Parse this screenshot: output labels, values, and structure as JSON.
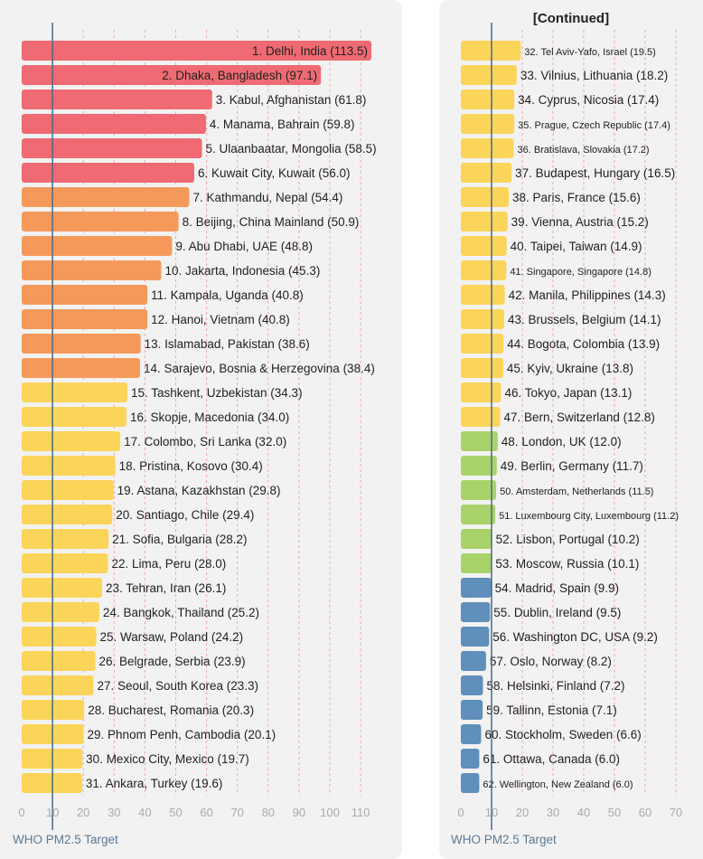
{
  "continued_label": "[Continued]",
  "target_label": "WHO PM2.5 Target",
  "target_value": 10,
  "colors": {
    "red": "#ef6a72",
    "orange": "#f5995a",
    "yellow": "#fbd45a",
    "green": "#a9d26a",
    "blue": "#5f8fba",
    "target_line": "#4a6a88",
    "grid": "#f0a8b0",
    "tick": "#aaaaaa",
    "text": "#222222"
  },
  "chart_data": [
    {
      "type": "bar",
      "orientation": "horizontal",
      "xlim": [
        0,
        115
      ],
      "xticks": [
        0,
        10,
        20,
        30,
        40,
        50,
        60,
        70,
        80,
        90,
        100,
        110
      ],
      "reference_line": 10,
      "categories": [
        "1. Delhi, India (113.5)",
        "2. Dhaka, Bangladesh (97.1)",
        "3. Kabul, Afghanistan (61.8)",
        "4. Manama, Bahrain (59.8)",
        "5. Ulaanbaatar, Mongolia (58.5)",
        "6. Kuwait City, Kuwait (56.0)",
        "7. Kathmandu, Nepal (54.4)",
        "8. Beijing, China Mainland (50.9)",
        "9. Abu Dhabi, UAE (48.8)",
        "10. Jakarta, Indonesia (45.3)",
        "11. Kampala, Uganda (40.8)",
        "12. Hanoi, Vietnam (40.8)",
        "13. Islamabad, Pakistan (38.6)",
        "14. Sarajevo, Bosnia & Herzegovina (38.4)",
        "15. Tashkent, Uzbekistan (34.3)",
        "16. Skopje, Macedonia (34.0)",
        "17. Colombo, Sri Lanka (32.0)",
        "18. Pristina, Kosovo (30.4)",
        "19. Astana, Kazakhstan (29.8)",
        "20. Santiago, Chile (29.4)",
        "21. Sofia, Bulgaria (28.2)",
        "22. Lima, Peru (28.0)",
        "23. Tehran, Iran (26.1)",
        "24. Bangkok, Thailand (25.2)",
        "25. Warsaw, Poland (24.2)",
        "26. Belgrade, Serbia (23.9)",
        "27. Seoul, South Korea (23.3)",
        "28. Bucharest, Romania (20.3)",
        "29. Phnom Penh, Cambodia (20.1)",
        "30. Mexico City, Mexico (19.7)",
        "31. Ankara, Turkey (19.6)"
      ],
      "values": [
        113.5,
        97.1,
        61.8,
        59.8,
        58.5,
        56.0,
        54.4,
        50.9,
        48.8,
        45.3,
        40.8,
        40.8,
        38.6,
        38.4,
        34.3,
        34.0,
        32.0,
        30.4,
        29.8,
        29.4,
        28.2,
        28.0,
        26.1,
        25.2,
        24.2,
        23.9,
        23.3,
        20.3,
        20.1,
        19.7,
        19.6
      ],
      "color_groups": [
        "red",
        "red",
        "red",
        "red",
        "red",
        "red",
        "orange",
        "orange",
        "orange",
        "orange",
        "orange",
        "orange",
        "orange",
        "orange",
        "yellow",
        "yellow",
        "yellow",
        "yellow",
        "yellow",
        "yellow",
        "yellow",
        "yellow",
        "yellow",
        "yellow",
        "yellow",
        "yellow",
        "yellow",
        "yellow",
        "yellow",
        "yellow",
        "yellow"
      ]
    },
    {
      "type": "bar",
      "orientation": "horizontal",
      "xlim": [
        0,
        70
      ],
      "xticks": [
        0,
        10,
        20,
        30,
        40,
        50,
        60,
        70
      ],
      "reference_line": 10,
      "categories": [
        "32. Tel Aviv-Yafo, Israel (19.5)",
        "33. Vilnius, Lithuania (18.2)",
        "34. Cyprus, Nicosia (17.4)",
        "35. Prague, Czech Republic (17.4)",
        "36. Bratislava, Slovakia (17.2)",
        "37. Budapest, Hungary (16.5)",
        "38. Paris, France (15.6)",
        "39. Vienna, Austria (15.2)",
        "40. Taipei, Taiwan (14.9)",
        "41. Singapore, Singapore (14.8)",
        "42. Manila, Philippines (14.3)",
        "43. Brussels, Belgium (14.1)",
        "44. Bogota, Colombia (13.9)",
        "45. Kyiv, Ukraine (13.8)",
        "46. Tokyo, Japan (13.1)",
        "47. Bern, Switzerland (12.8)",
        "48. London, UK (12.0)",
        "49. Berlin, Germany (11.7)",
        "50. Amsterdam, Netherlands (11.5)",
        "51. Luxembourg City, Luxembourg (11.2)",
        "52. Lisbon, Portugal (10.2)",
        "53. Moscow, Russia (10.1)",
        "54. Madrid, Spain (9.9)",
        "55. Dublin, Ireland (9.5)",
        "56. Washington DC, USA (9.2)",
        "57. Oslo, Norway (8.2)",
        "58. Helsinki, Finland (7.2)",
        "59. Tallinn, Estonia (7.1)",
        "60. Stockholm, Sweden (6.6)",
        "61. Ottawa, Canada (6.0)",
        "62. Wellington, New Zealand (6.0)"
      ],
      "values": [
        19.5,
        18.2,
        17.4,
        17.4,
        17.2,
        16.5,
        15.6,
        15.2,
        14.9,
        14.8,
        14.3,
        14.1,
        13.9,
        13.8,
        13.1,
        12.8,
        12.0,
        11.7,
        11.5,
        11.2,
        10.2,
        10.1,
        9.9,
        9.5,
        9.2,
        8.2,
        7.2,
        7.1,
        6.6,
        6.0,
        6.0
      ],
      "color_groups": [
        "yellow",
        "yellow",
        "yellow",
        "yellow",
        "yellow",
        "yellow",
        "yellow",
        "yellow",
        "yellow",
        "yellow",
        "yellow",
        "yellow",
        "yellow",
        "yellow",
        "yellow",
        "yellow",
        "green",
        "green",
        "green",
        "green",
        "green",
        "green",
        "blue",
        "blue",
        "blue",
        "blue",
        "blue",
        "blue",
        "blue",
        "blue",
        "blue"
      ]
    }
  ]
}
